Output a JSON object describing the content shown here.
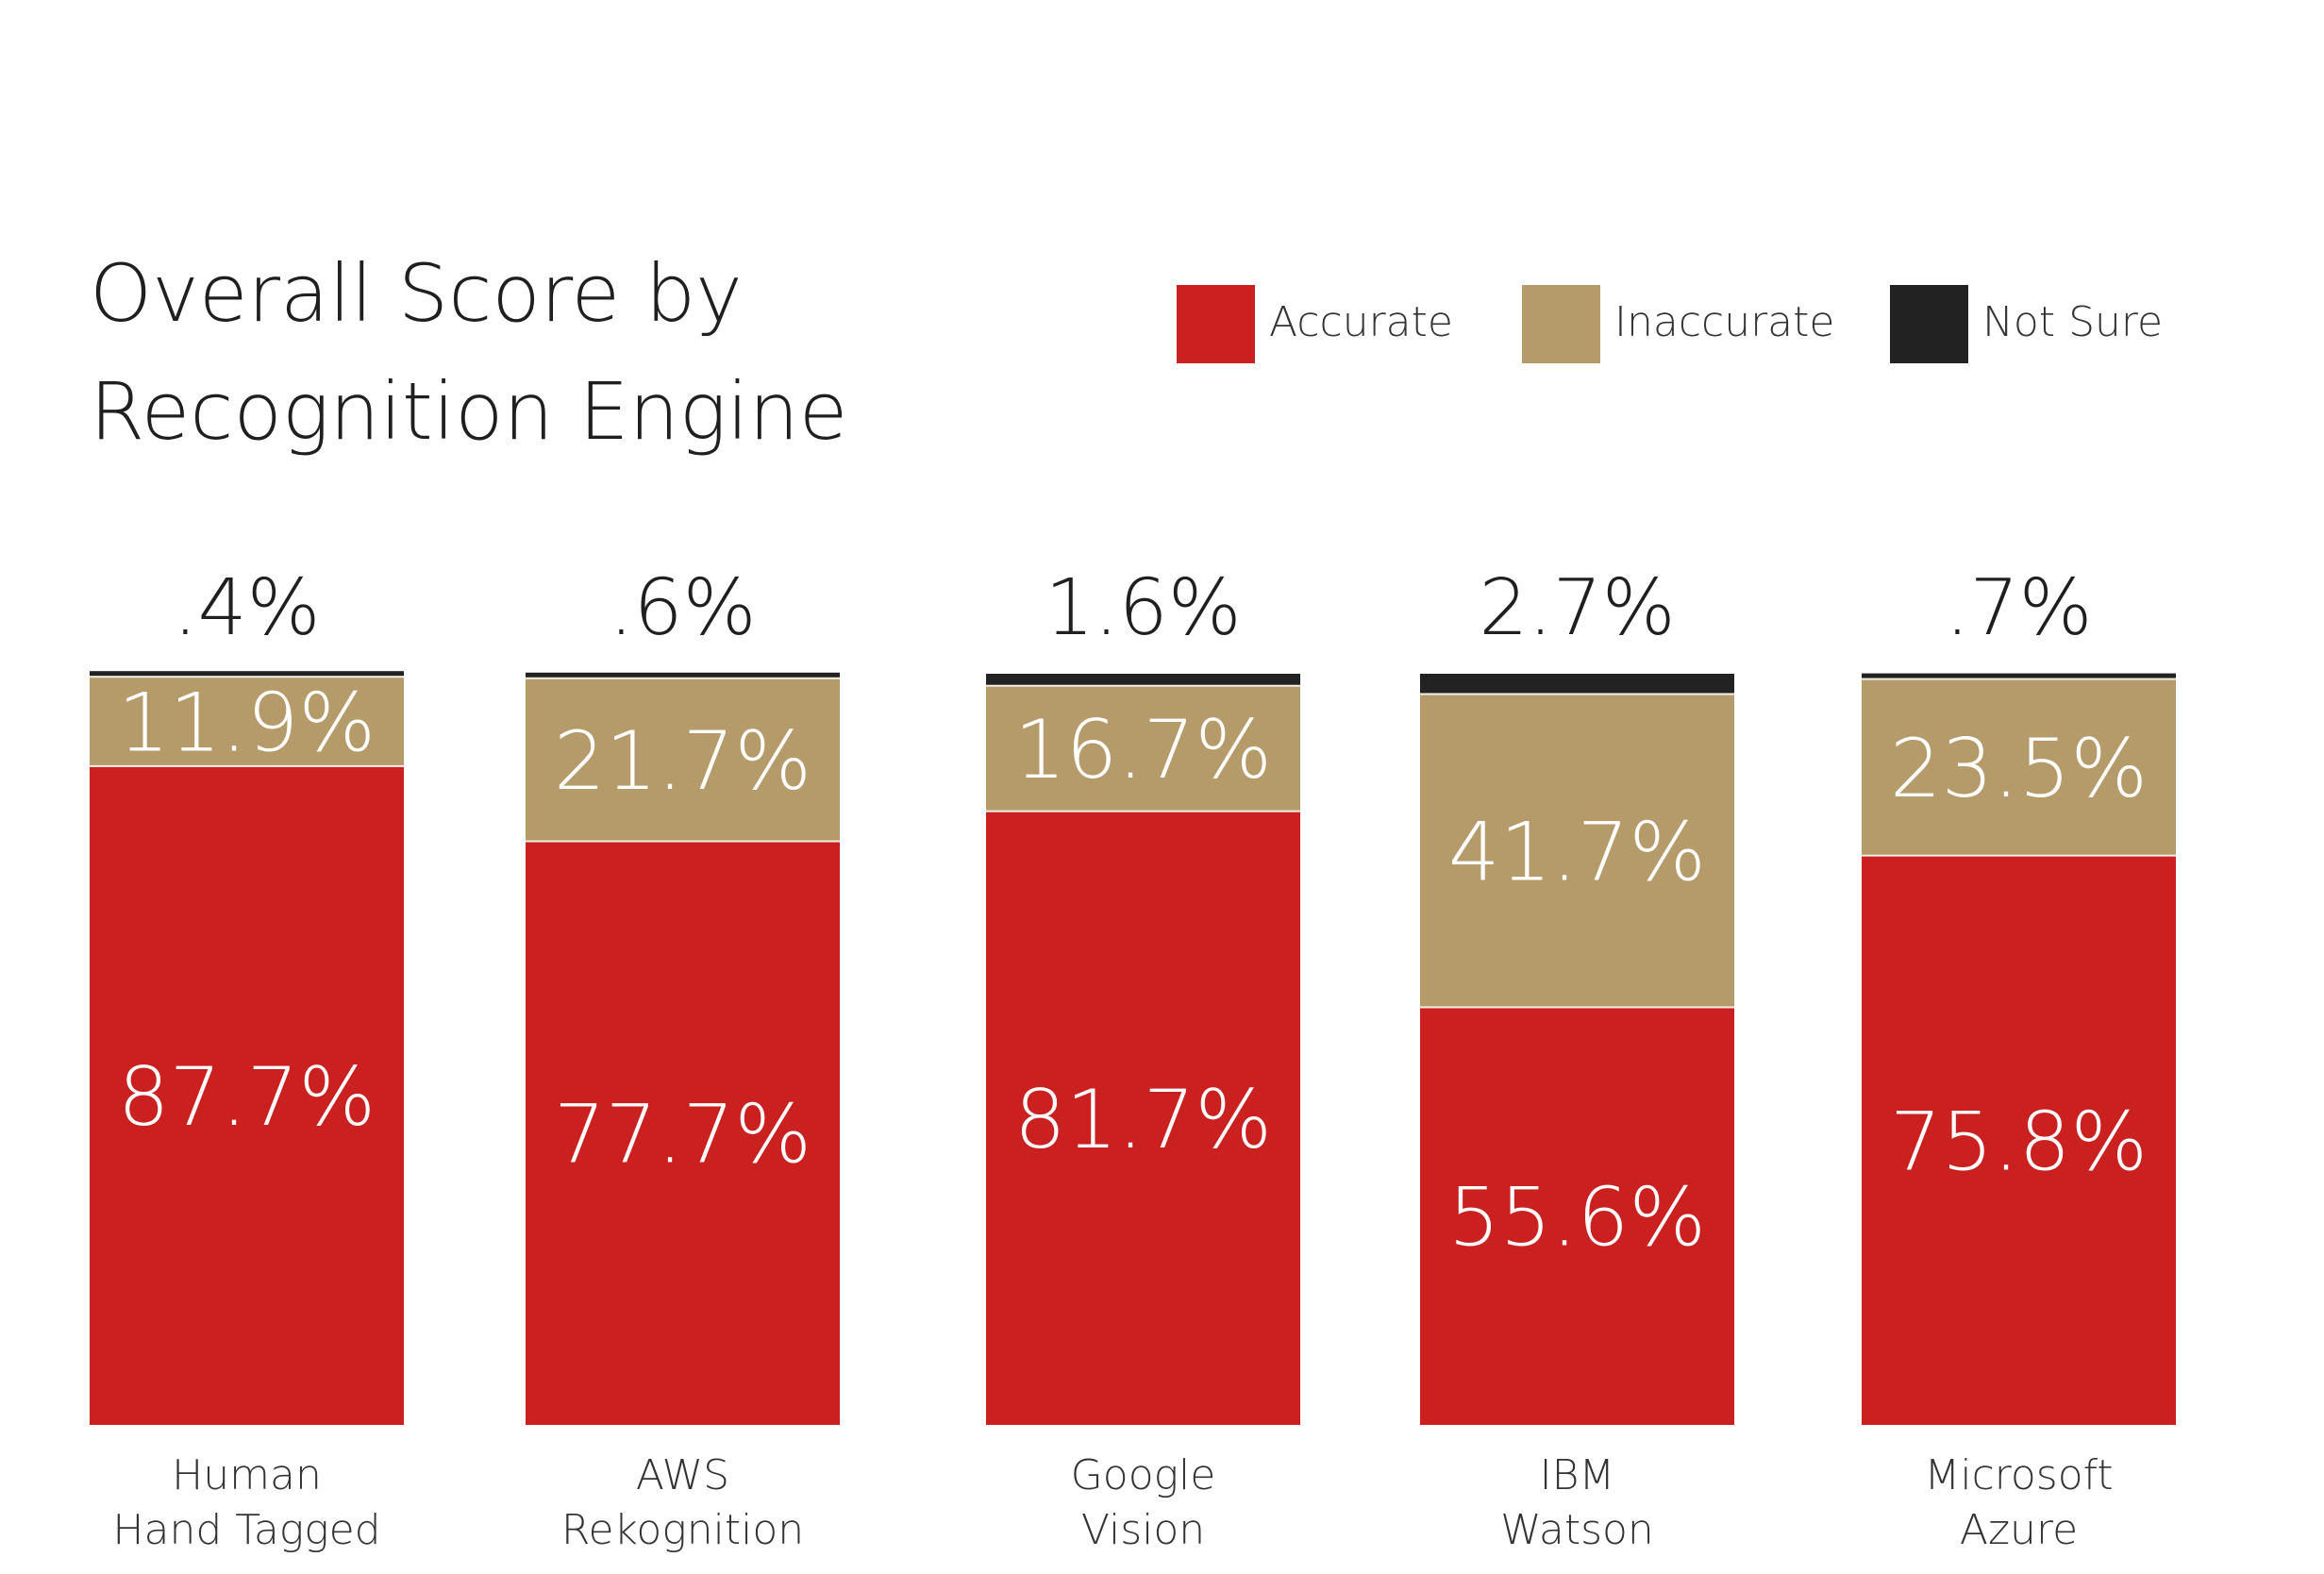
{
  "chart_data": {
    "type": "bar",
    "stacked": true,
    "title_lines": [
      "Overall Score by",
      "Recognition Engine"
    ],
    "categories": [
      [
        "Human",
        "Hand Tagged"
      ],
      [
        "AWS",
        "Rekognition"
      ],
      [
        "Google",
        "Vision"
      ],
      [
        "IBM",
        "Watson"
      ],
      [
        "Microsoft",
        "Azure"
      ]
    ],
    "series": [
      {
        "name": "Accurate",
        "color": "#cb2020",
        "values": [
          87.7,
          77.7,
          81.7,
          55.6,
          75.8
        ],
        "labels": [
          "87.7%",
          "77.7%",
          "81.7%",
          "55.6%",
          "75.8%"
        ]
      },
      {
        "name": "Inaccurate",
        "color": "#b59a6a",
        "values": [
          11.9,
          21.7,
          16.7,
          41.7,
          23.5
        ],
        "labels": [
          "11.9%",
          "21.7%",
          "16.7%",
          "41.7%",
          "23.5%"
        ]
      },
      {
        "name": "Not Sure",
        "color": "#222222",
        "values": [
          0.4,
          0.6,
          1.6,
          2.7,
          0.7
        ],
        "labels": [
          ".4%",
          ".6%",
          "1.6%",
          "2.7%",
          ".7%"
        ]
      }
    ],
    "ylim": [
      0,
      100
    ],
    "legend": "top-right",
    "grid": false
  }
}
